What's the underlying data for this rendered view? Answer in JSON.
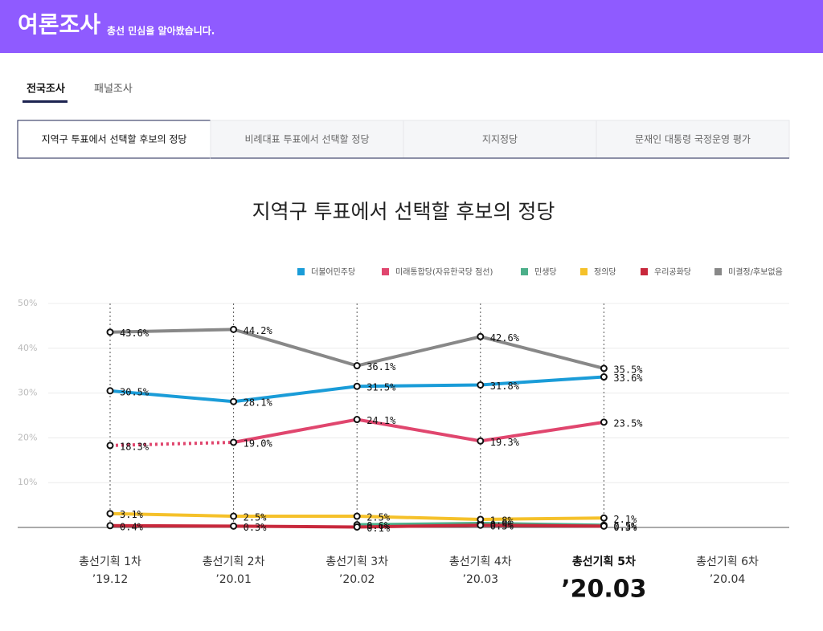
{
  "header": {
    "title": "여론조사",
    "subtitle": "총선 민심을 알아봤습니다."
  },
  "tabs": [
    "전국조사",
    "패널조사"
  ],
  "subtabs": [
    "지역구 투표에서 선택할 후보의 정당",
    "비례대표 투표에서 선택할 정당",
    "지지정당",
    "문재인 대통령 국정운영 평가"
  ],
  "chart_data": {
    "type": "line",
    "title": "지역구 투표에서 선택할 후보의 정당",
    "categories": [
      "총선기획 1차",
      "총선기획 2차",
      "총선기획 3차",
      "총선기획 4차",
      "총선기획 5차",
      "총선기획 6차"
    ],
    "periods": [
      "’19.12",
      "’20.01",
      "’20.02",
      "’20.03",
      "’20.03",
      "’20.04"
    ],
    "current_index": 4,
    "ylim": [
      0,
      50
    ],
    "yticks": [
      {
        "value": 10,
        "label": "10%"
      },
      {
        "value": 20,
        "label": "20%"
      },
      {
        "value": 30,
        "label": "30%"
      },
      {
        "value": 40,
        "label": "40%"
      },
      {
        "value": 50,
        "label": "50%"
      }
    ],
    "grid": true,
    "series": [
      {
        "name": "더불어민주당",
        "color": "#1a9cd8",
        "values": [
          30.5,
          28.1,
          31.5,
          31.8,
          33.6,
          null
        ],
        "value_labels": [
          "30.5%",
          "28.1%",
          "31.5%",
          "31.8%",
          "33.6%",
          null
        ]
      },
      {
        "name": "미래통합당(자유한국당 점선)",
        "color": "#e0466e",
        "dotted_segments": [
          0
        ],
        "values": [
          18.3,
          19.0,
          24.1,
          19.3,
          23.5,
          null
        ],
        "value_labels": [
          "18.3%",
          "19.0%",
          "24.1%",
          "19.3%",
          "23.5%",
          null
        ]
      },
      {
        "name": "민생당",
        "color": "#4caf8a",
        "values": [
          null,
          null,
          0.6,
          0.9,
          0.5,
          null
        ],
        "value_labels": [
          null,
          null,
          "0.6%",
          "0.9%",
          "0.5%",
          null
        ]
      },
      {
        "name": "정의당",
        "color": "#f5c12a",
        "values": [
          3.1,
          2.5,
          2.5,
          1.8,
          2.1,
          null
        ],
        "value_labels": [
          "3.1%",
          "2.5%",
          "2.5%",
          "1.8%",
          "2.1%",
          null
        ]
      },
      {
        "name": "우리공화당",
        "color": "#c8283c",
        "values": [
          0.4,
          0.3,
          0.1,
          0.5,
          0.3,
          null
        ],
        "value_labels": [
          "0.4%",
          "0.3%",
          "0.1%",
          "0.5%",
          "0.3%",
          null
        ]
      },
      {
        "name": "미결정/후보없음",
        "color": "#888888",
        "values": [
          43.6,
          44.2,
          36.1,
          42.6,
          35.5,
          null
        ],
        "value_labels": [
          "43.6%",
          "44.2%",
          "36.1%",
          "42.6%",
          "35.5%",
          null
        ]
      }
    ]
  }
}
